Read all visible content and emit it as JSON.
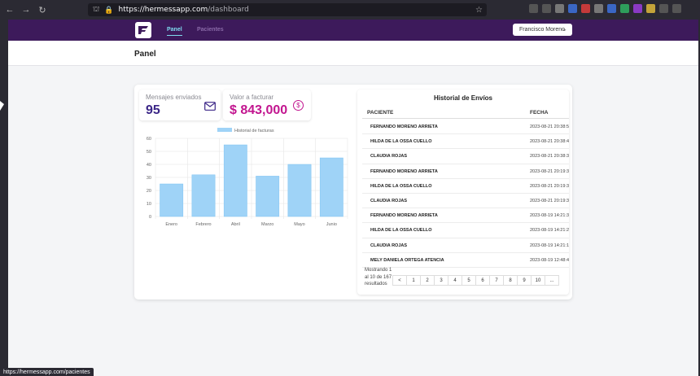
{
  "browser": {
    "url_host": "https://hermessapp.com",
    "url_path": "/dashboard",
    "status_url": "https://hermessapp.com/pacientes"
  },
  "appbar": {
    "tabs": [
      {
        "label": "Panel"
      },
      {
        "label": "Pacientes"
      }
    ],
    "user": "Francisco Moreno"
  },
  "page_title": "Panel",
  "stats": {
    "messages_label": "Mensajes enviados",
    "messages_value": "95",
    "invoice_label": "Valor a facturar",
    "invoice_value": "$ 843,000"
  },
  "chart_data": {
    "type": "bar",
    "categories": [
      "Enero",
      "Febrero",
      "Abril",
      "Marzo",
      "Mayo",
      "Junio"
    ],
    "series": [
      {
        "name": "Historial de facturas",
        "values": [
          25,
          32,
          55,
          31,
          40,
          45
        ],
        "color": "#9fd3f7"
      }
    ],
    "yticks": [
      0,
      10,
      20,
      30,
      40,
      50,
      60
    ],
    "ylim": [
      0,
      60
    ],
    "legend": "top",
    "grid": true
  },
  "history": {
    "title": "Historial de Envíos",
    "col_patient": "PACIENTE",
    "col_date": "FECHA",
    "rows": [
      {
        "patient": "FERNANDO MORENO ARRIETA",
        "date": "2023-08-21 20:38:5"
      },
      {
        "patient": "HILDA DE LA OSSA CUELLO",
        "date": "2023-08-21 20:38:4"
      },
      {
        "patient": "CLAUDIA ROJAS",
        "date": "2023-08-21 20:38:3"
      },
      {
        "patient": "FERNANDO MORENO ARRIETA",
        "date": "2023-08-21 20:19:3"
      },
      {
        "patient": "HILDA DE LA OSSA CUELLO",
        "date": "2023-08-21 20:19:3"
      },
      {
        "patient": "CLAUDIA ROJAS",
        "date": "2023-08-21 20:19:3"
      },
      {
        "patient": "FERNANDO MORENO ARRIETA",
        "date": "2023-08-19 14:21:3"
      },
      {
        "patient": "HILDA DE LA OSSA CUELLO",
        "date": "2023-08-19 14:21:2"
      },
      {
        "patient": "CLAUDIA ROJAS",
        "date": "2023-08-19 14:21:1"
      },
      {
        "patient": "MELY DANIELA ORTEGA ATENCIA",
        "date": "2023-08-19 12:48:4"
      }
    ],
    "showing_text": "Mostrando 1 al 10 de 167 resultados",
    "pages": [
      "<",
      "1",
      "2",
      "3",
      "4",
      "5",
      "6",
      "7",
      "8",
      "9",
      "10",
      "..."
    ]
  },
  "colors": {
    "appbar": "#3d1a5b",
    "accent_tab": "#7fdcf0",
    "messages": "#3b2687",
    "invoice": "#c2158f"
  }
}
